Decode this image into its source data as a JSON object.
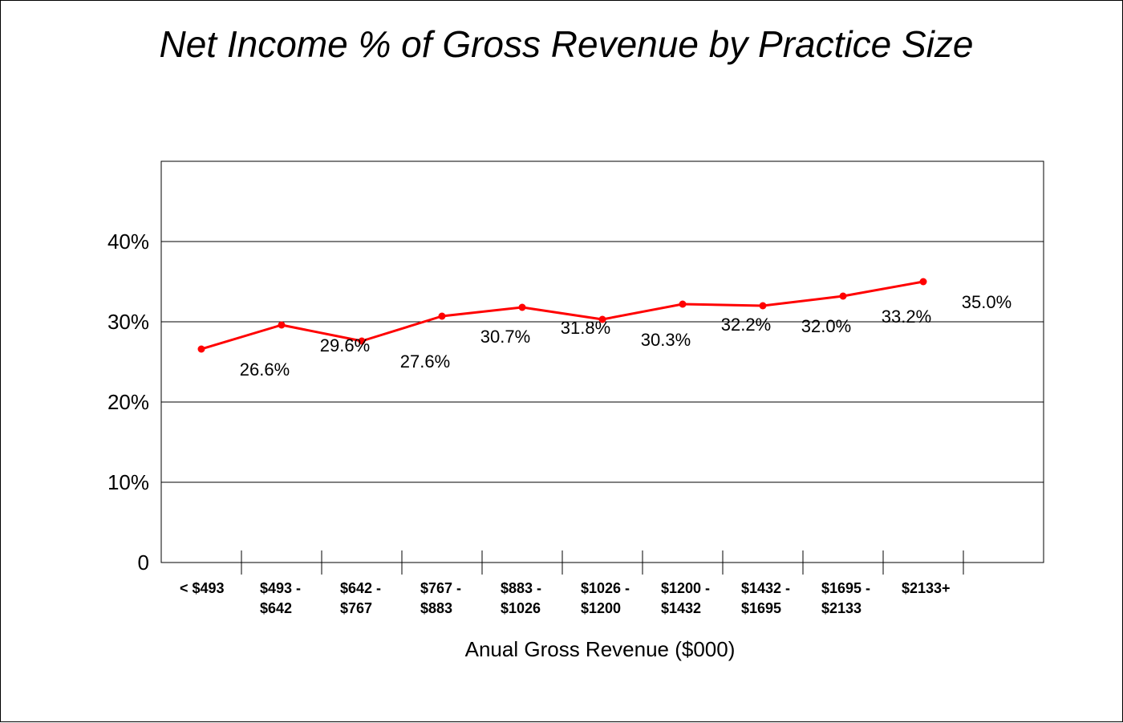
{
  "chart_data": {
    "type": "line",
    "title": "Net Income % of Gross Revenue by Practice Size",
    "xlabel": "Anual Gross Revenue ($000)",
    "ylabel": "",
    "categories": [
      [
        "< $493"
      ],
      [
        "$493 -",
        "$642"
      ],
      [
        "$642 -",
        "$767"
      ],
      [
        "$767 -",
        "$883"
      ],
      [
        "$883 -",
        "$1026"
      ],
      [
        "$1026 -",
        "$1200"
      ],
      [
        "$1200 -",
        "$1432"
      ],
      [
        "$1432 -",
        "$1695"
      ],
      [
        "$1695 -",
        "$2133"
      ],
      [
        "$2133+"
      ]
    ],
    "series": [
      {
        "values": [
          26.6,
          29.6,
          27.6,
          30.7,
          31.8,
          30.3,
          32.2,
          32.0,
          33.2,
          35.0
        ],
        "labels": [
          "26.6%",
          "29.6%",
          "27.6%",
          "30.7%",
          "31.8%",
          "30.3%",
          "32.2%",
          "32.0%",
          "33.2%",
          "35.0%"
        ],
        "color": "#ff0000"
      }
    ],
    "ylim": [
      0,
      50
    ],
    "yticks": [
      {
        "value": 0,
        "label": "0"
      },
      {
        "value": 10,
        "label": "10%"
      },
      {
        "value": 20,
        "label": "20%"
      },
      {
        "value": 30,
        "label": "30%"
      },
      {
        "value": 40,
        "label": "40%"
      }
    ],
    "grid": true,
    "legend": "none"
  }
}
